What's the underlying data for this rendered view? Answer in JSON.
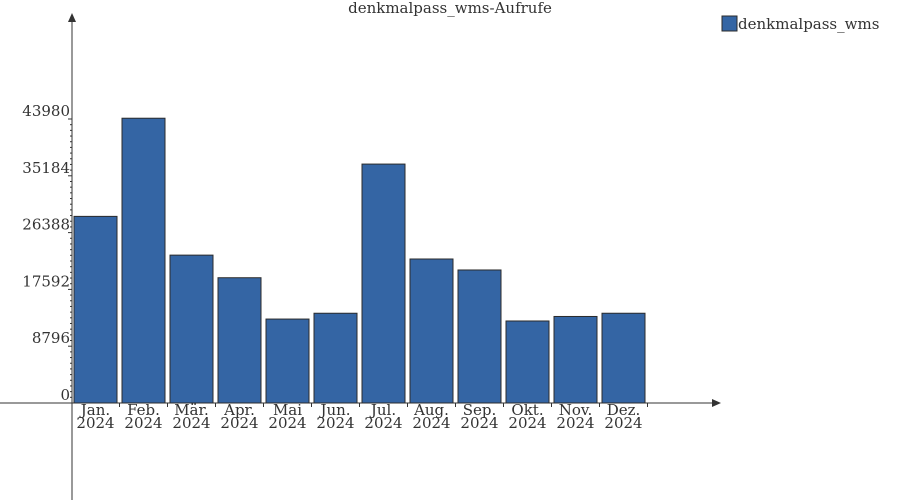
{
  "chart_data": {
    "type": "bar",
    "title": "denkmalpass_wms-Aufrufe",
    "categories": [
      [
        "Jan.",
        "2024"
      ],
      [
        "Feb.",
        "2024"
      ],
      [
        "Mär.",
        "2024"
      ],
      [
        "Apr.",
        "2024"
      ],
      [
        "Mai",
        "2024"
      ],
      [
        "Jun.",
        "2024"
      ],
      [
        "Jul.",
        "2024"
      ],
      [
        "Aug.",
        "2024"
      ],
      [
        "Sep.",
        "2024"
      ],
      [
        "Okt.",
        "2024"
      ],
      [
        "Nov.",
        "2024"
      ],
      [
        "Dez.",
        "2024"
      ]
    ],
    "series": [
      {
        "name": "denkmalpass_wms",
        "color": "#3465a4",
        "values": [
          28900,
          44100,
          22900,
          19400,
          13000,
          13900,
          37000,
          22300,
          20600,
          12700,
          13400,
          13900
        ]
      }
    ],
    "yticks": [
      0,
      8796,
      17592,
      26388,
      35184,
      43980
    ],
    "ylim": [
      0,
      43980
    ],
    "xlabel": "",
    "ylabel": "",
    "legend_position": "top-right",
    "grid": false
  }
}
